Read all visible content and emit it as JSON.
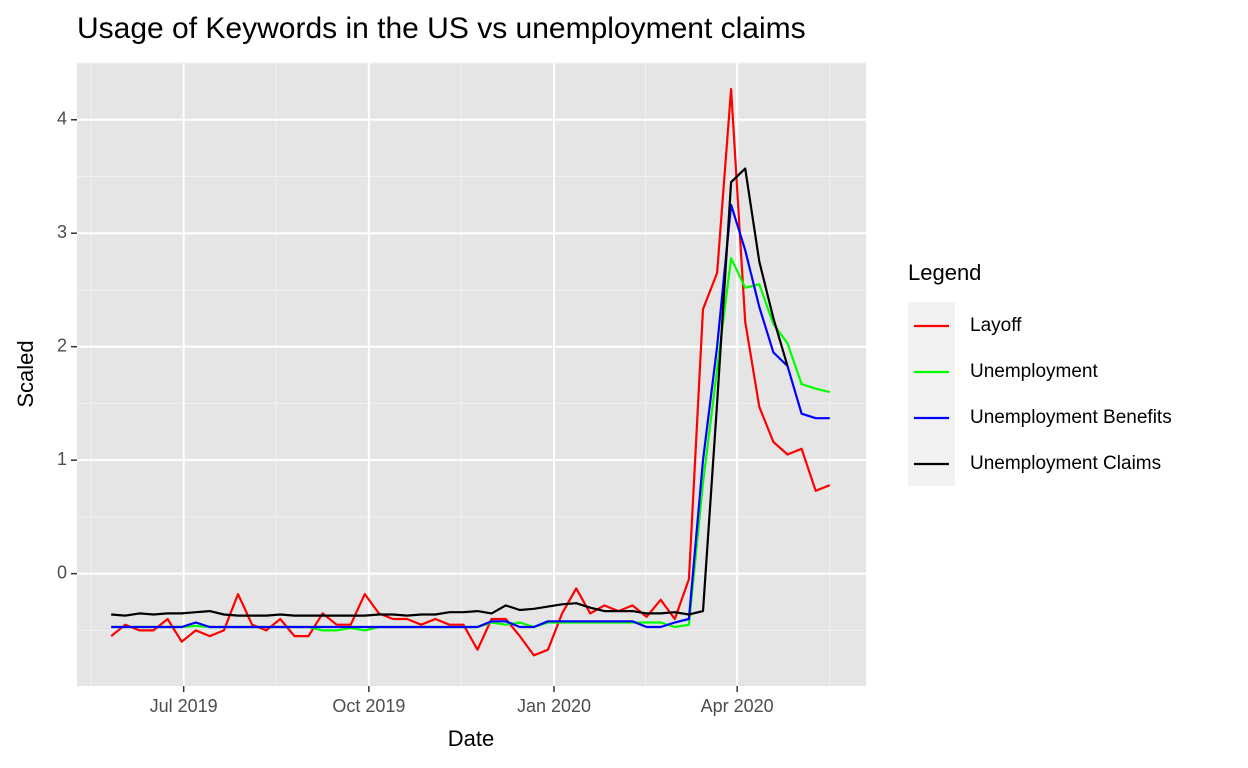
{
  "chart_data": {
    "type": "line",
    "title": "Usage of Keywords in the US vs unemployment claims",
    "x_label": "Date",
    "y_label": "Scaled",
    "legend_title": "Legend",
    "x": [
      "2019-05-26",
      "2019-06-02",
      "2019-06-09",
      "2019-06-16",
      "2019-06-23",
      "2019-06-30",
      "2019-07-07",
      "2019-07-14",
      "2019-07-21",
      "2019-07-28",
      "2019-08-04",
      "2019-08-11",
      "2019-08-18",
      "2019-08-25",
      "2019-09-01",
      "2019-09-08",
      "2019-09-15",
      "2019-09-22",
      "2019-09-29",
      "2019-10-06",
      "2019-10-13",
      "2019-10-20",
      "2019-10-27",
      "2019-11-03",
      "2019-11-10",
      "2019-11-17",
      "2019-11-24",
      "2019-12-01",
      "2019-12-08",
      "2019-12-15",
      "2019-12-22",
      "2019-12-29",
      "2020-01-05",
      "2020-01-12",
      "2020-01-19",
      "2020-01-26",
      "2020-02-02",
      "2020-02-09",
      "2020-02-16",
      "2020-02-23",
      "2020-03-01",
      "2020-03-08",
      "2020-03-15",
      "2020-03-22",
      "2020-03-29",
      "2020-04-05",
      "2020-04-12",
      "2020-04-19",
      "2020-04-26",
      "2020-05-03",
      "2020-05-10",
      "2020-05-17"
    ],
    "series": [
      {
        "name": "Layoff",
        "color": "#ff0000",
        "values": [
          -0.55,
          -0.45,
          -0.5,
          -0.5,
          -0.4,
          -0.6,
          -0.5,
          -0.55,
          -0.5,
          -0.18,
          -0.45,
          -0.5,
          -0.4,
          -0.55,
          -0.55,
          -0.35,
          -0.45,
          -0.45,
          -0.18,
          -0.35,
          -0.4,
          -0.4,
          -0.45,
          -0.4,
          -0.45,
          -0.45,
          -0.67,
          -0.4,
          -0.4,
          -0.55,
          -0.72,
          -0.67,
          -0.35,
          -0.13,
          -0.35,
          -0.28,
          -0.33,
          -0.28,
          -0.38,
          -0.23,
          -0.4,
          -0.05,
          2.33,
          2.65,
          4.27,
          2.22,
          1.47,
          1.16,
          1.05,
          1.1,
          0.73,
          0.78
        ]
      },
      {
        "name": "Unemployment",
        "color": "#00ff00",
        "values": [
          -0.47,
          -0.47,
          -0.47,
          -0.47,
          -0.47,
          -0.47,
          -0.46,
          -0.47,
          -0.47,
          -0.47,
          -0.47,
          -0.47,
          -0.47,
          -0.47,
          -0.47,
          -0.5,
          -0.5,
          -0.48,
          -0.5,
          -0.47,
          -0.47,
          -0.47,
          -0.47,
          -0.47,
          -0.47,
          -0.47,
          -0.47,
          -0.43,
          -0.45,
          -0.43,
          -0.47,
          -0.43,
          -0.43,
          -0.43,
          -0.43,
          -0.43,
          -0.43,
          -0.43,
          -0.43,
          -0.43,
          -0.47,
          -0.45,
          0.8,
          1.8,
          2.78,
          2.52,
          2.55,
          2.2,
          2.03,
          1.67,
          1.63,
          1.6
        ]
      },
      {
        "name": "Unemployment Benefits",
        "color": "#0000ff",
        "values": [
          -0.47,
          -0.47,
          -0.47,
          -0.47,
          -0.47,
          -0.47,
          -0.43,
          -0.47,
          -0.47,
          -0.47,
          -0.47,
          -0.47,
          -0.47,
          -0.47,
          -0.47,
          -0.47,
          -0.47,
          -0.47,
          -0.47,
          -0.47,
          -0.47,
          -0.47,
          -0.47,
          -0.47,
          -0.47,
          -0.47,
          -0.47,
          -0.42,
          -0.42,
          -0.47,
          -0.47,
          -0.42,
          -0.42,
          -0.42,
          -0.42,
          -0.42,
          -0.42,
          -0.42,
          -0.47,
          -0.47,
          -0.43,
          -0.4,
          1.0,
          2.0,
          3.25,
          2.85,
          2.35,
          1.95,
          1.83,
          1.41,
          1.37,
          1.37
        ]
      },
      {
        "name": "Unemployment Claims",
        "color": "#000000",
        "values": [
          -0.36,
          -0.37,
          -0.35,
          -0.36,
          -0.35,
          -0.35,
          -0.34,
          -0.33,
          -0.36,
          -0.37,
          -0.37,
          -0.37,
          -0.36,
          -0.37,
          -0.37,
          -0.37,
          -0.37,
          -0.37,
          -0.37,
          -0.36,
          -0.36,
          -0.37,
          -0.36,
          -0.36,
          -0.34,
          -0.34,
          -0.33,
          -0.35,
          -0.28,
          -0.32,
          -0.31,
          -0.29,
          -0.27,
          -0.26,
          -0.3,
          -0.33,
          -0.33,
          -0.33,
          -0.35,
          -0.35,
          -0.34,
          -0.36,
          -0.33,
          1.5,
          3.45,
          3.57,
          2.75,
          2.25,
          1.83,
          null,
          null,
          null
        ]
      }
    ],
    "xlim": [
      "2019-05-09",
      "2020-06-04"
    ],
    "xticks": [
      {
        "value": "2019-07-01",
        "label": "Jul 2019"
      },
      {
        "value": "2019-10-01",
        "label": "Oct 2019"
      },
      {
        "value": "2020-01-01",
        "label": "Jan 2020"
      },
      {
        "value": "2020-04-01",
        "label": "Apr 2020"
      }
    ],
    "ylim": [
      -0.99,
      4.5
    ],
    "yticks": [
      0,
      1,
      2,
      3,
      4
    ],
    "grid": true,
    "legend": "right"
  }
}
